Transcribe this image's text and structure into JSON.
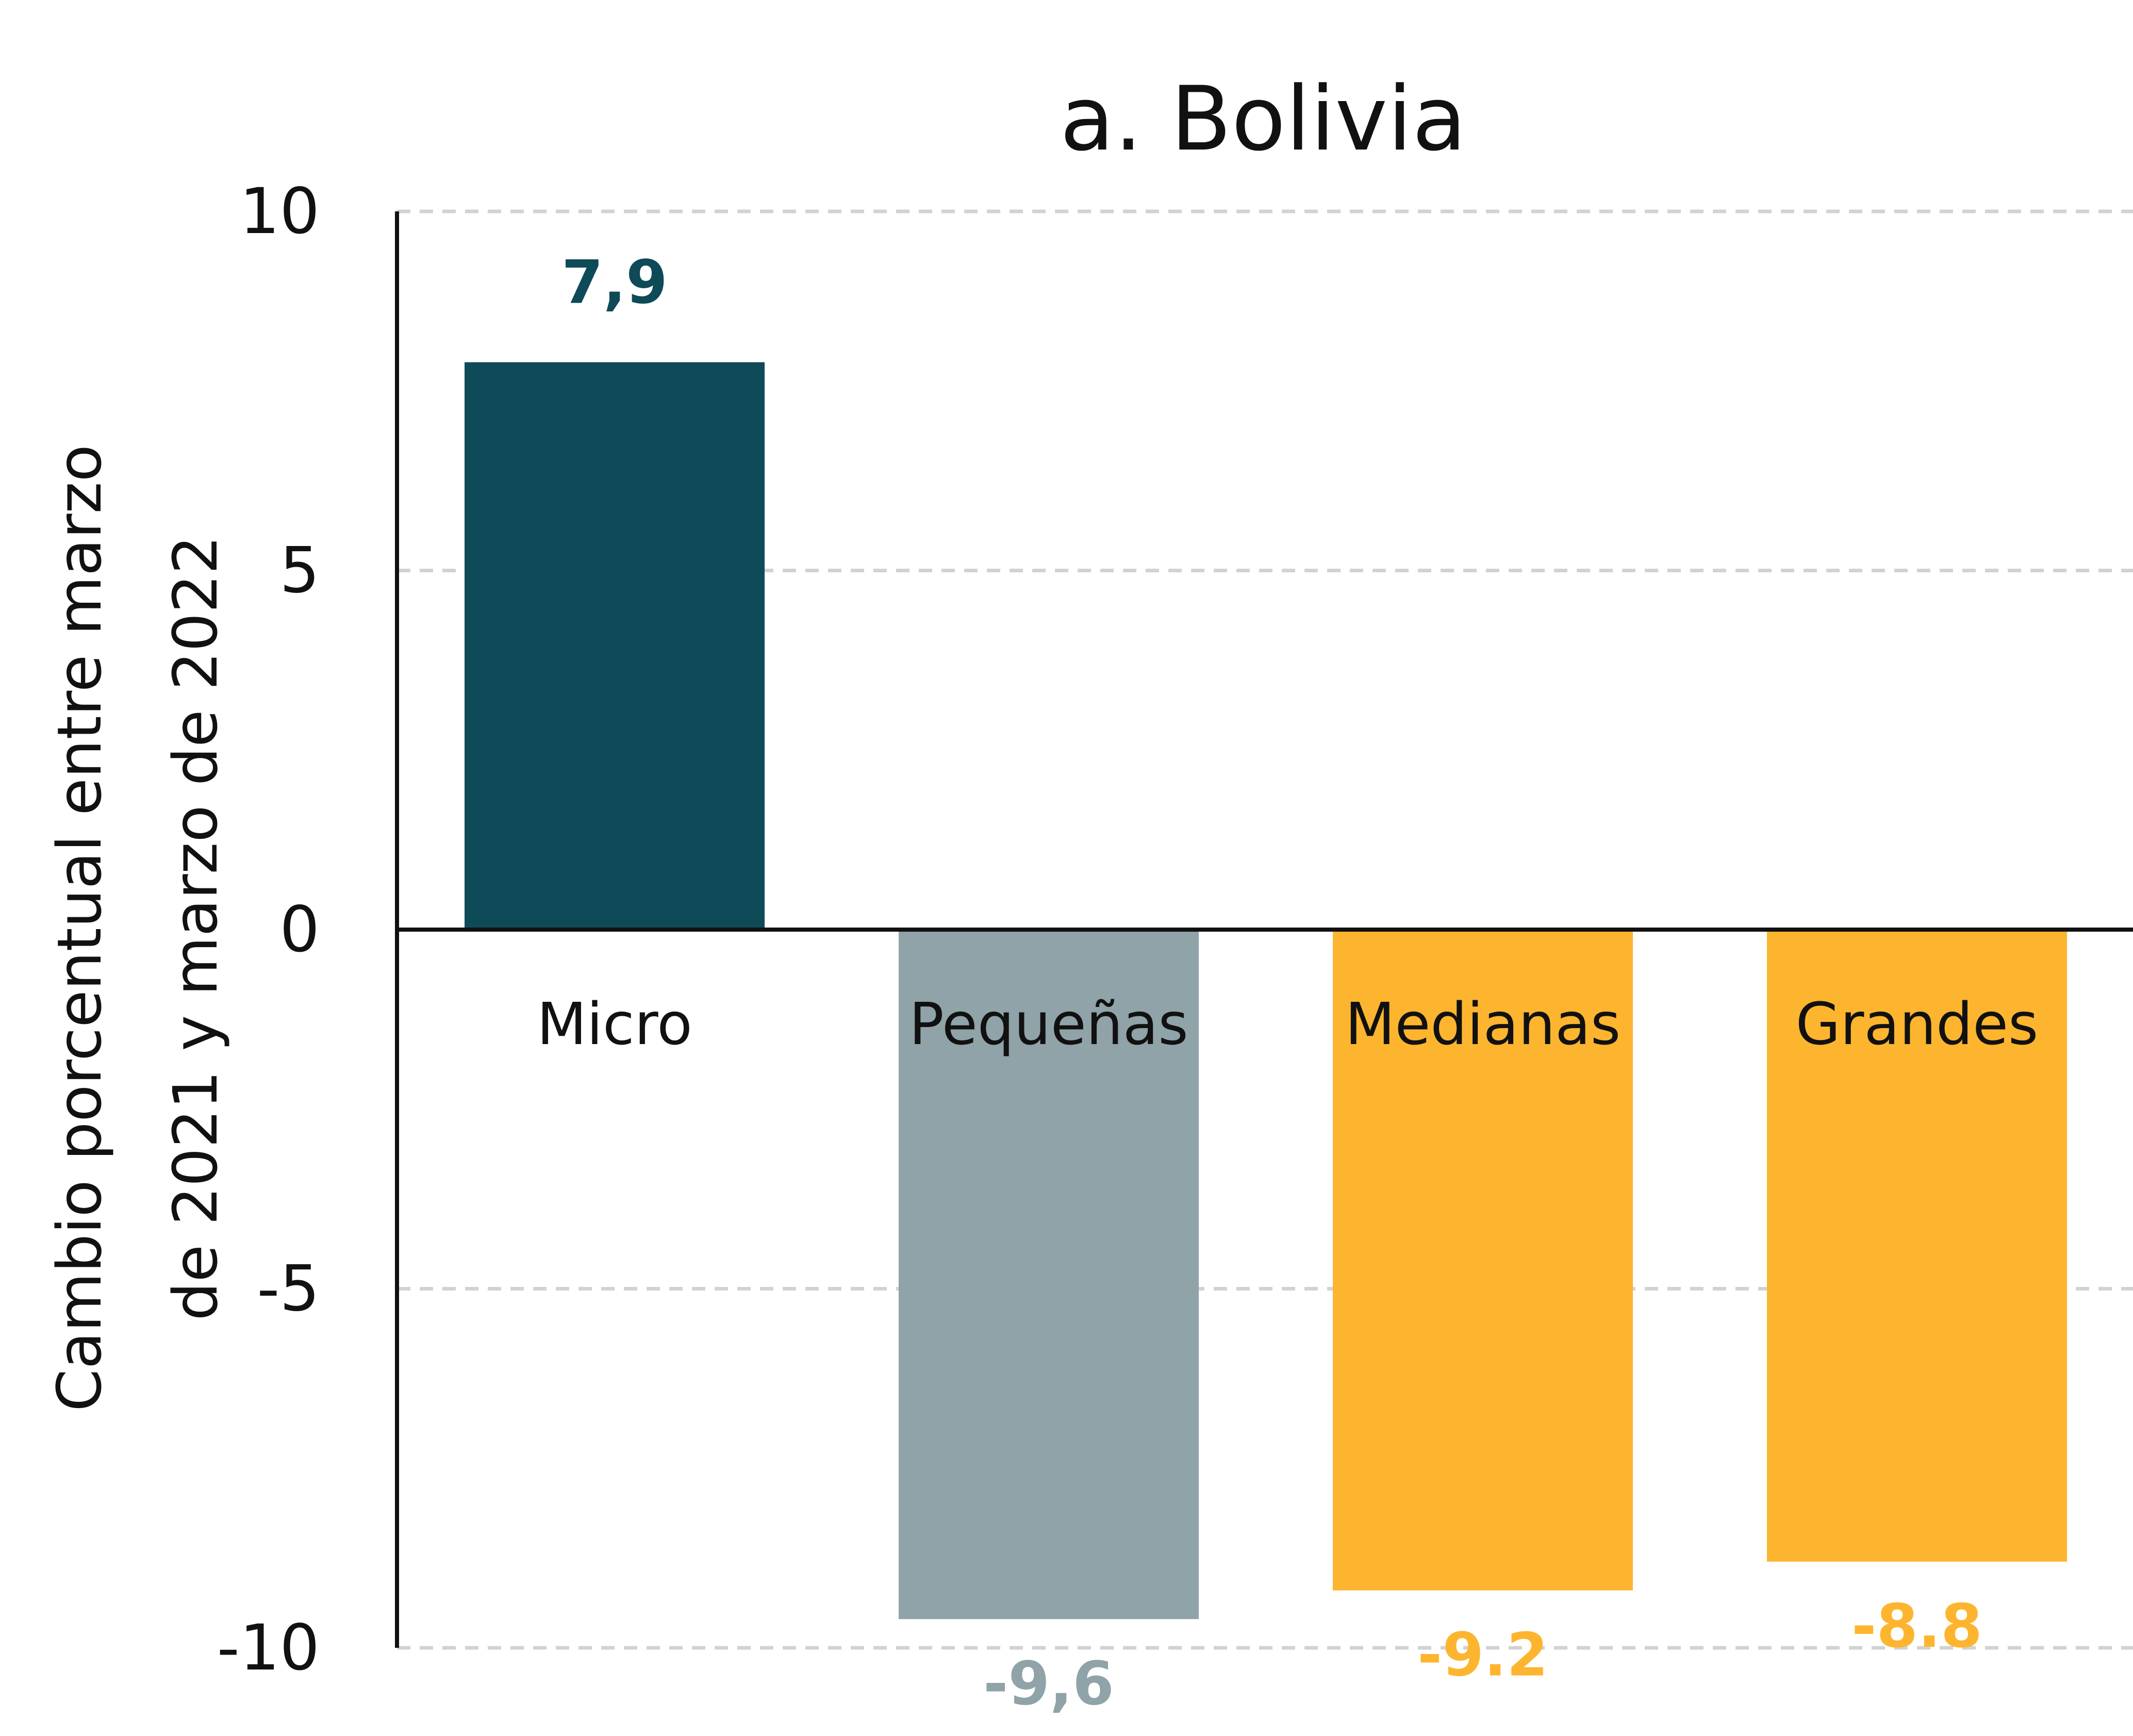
{
  "chart_data": {
    "type": "bar",
    "title": "a. Bolivia",
    "ylabel_lines": [
      "Cambio porcentual entre marzo",
      "de 2021 y marzo de 2022"
    ],
    "ylim": [
      -10,
      10
    ],
    "yticks": [
      "10",
      "5",
      "0",
      "-5",
      "-10"
    ],
    "ytick_values": [
      10,
      5,
      0,
      -5,
      -10
    ],
    "grid": true,
    "categories": [
      "Micro",
      "Pequeñas",
      "Medianas",
      "Grandes"
    ],
    "values": [
      7.9,
      -9.6,
      -9.2,
      -8.8
    ],
    "value_labels": [
      "7,9",
      "-9,6",
      "-9.2",
      "-8.8"
    ],
    "colors": [
      "#0e4a57",
      "#8fa3a8",
      "#fdb52f",
      "#fdb52f"
    ]
  }
}
